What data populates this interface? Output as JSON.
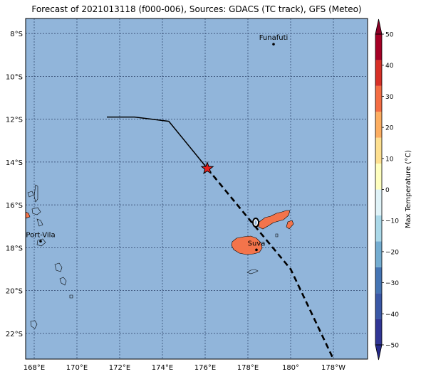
{
  "title": "Forecast of 2021013118 (f000-006), Sources: GDACS (TC track), GFS (Meteo)",
  "colors": {
    "ocean": "#91b5da",
    "land_hot": "#f3744b",
    "track": "#000000",
    "star": "#e8211c"
  },
  "map": {
    "lon_range": [
      167.6,
      183.6
    ],
    "lat_range": [
      -23.2,
      -7.3
    ],
    "lon_ticks": [
      {
        "value": 168,
        "label": "168°E"
      },
      {
        "value": 170,
        "label": "170°E"
      },
      {
        "value": 172,
        "label": "172°E"
      },
      {
        "value": 174,
        "label": "174°E"
      },
      {
        "value": 176,
        "label": "176°E"
      },
      {
        "value": 178,
        "label": "178°E"
      },
      {
        "value": 180,
        "label": "180°"
      },
      {
        "value": 182,
        "label": "178°W"
      }
    ],
    "lat_ticks": [
      {
        "value": -8,
        "label": "8°S"
      },
      {
        "value": -10,
        "label": "10°S"
      },
      {
        "value": -12,
        "label": "12°S"
      },
      {
        "value": -14,
        "label": "14°S"
      },
      {
        "value": -16,
        "label": "16°S"
      },
      {
        "value": -18,
        "label": "18°S"
      },
      {
        "value": -20,
        "label": "20°S"
      },
      {
        "value": -22,
        "label": "22°S"
      }
    ],
    "cities": [
      {
        "name": "Funafuti",
        "lon": 179.2,
        "lat": -8.5
      },
      {
        "name": "Port-Vila",
        "lon": 168.3,
        "lat": -17.7
      },
      {
        "name": "Suva",
        "lon": 178.4,
        "lat": -18.1
      }
    ],
    "track_past": [
      [
        171.4,
        -11.9
      ],
      [
        172.7,
        -11.9
      ],
      [
        174.3,
        -12.1
      ],
      [
        176.1,
        -14.3
      ]
    ],
    "track_forecast": [
      [
        176.1,
        -14.3
      ],
      [
        178.0,
        -16.6
      ],
      [
        180.0,
        -19.0
      ],
      [
        182.0,
        -23.2
      ]
    ],
    "storm_position": [
      176.1,
      -14.3
    ]
  },
  "colorbar": {
    "label": "Max Temperature (°C)",
    "min": -50,
    "max": 50,
    "ticks": [
      "50",
      "40",
      "30",
      "20",
      "10",
      "0",
      "−10",
      "−20",
      "−30",
      "−40",
      "−50"
    ],
    "tick_values": [
      50,
      40,
      30,
      20,
      10,
      0,
      -10,
      -20,
      -30,
      -40,
      -50
    ],
    "colors": [
      "#313695",
      "#3a58a6",
      "#4575b4",
      "#74add1",
      "#abd9e9",
      "#e0f3f8",
      "#ffffbf",
      "#fee090",
      "#fdae61",
      "#f46d43",
      "#d73027",
      "#a50026"
    ],
    "extend_low": "#262a8a",
    "extend_high": "#8c0026"
  }
}
